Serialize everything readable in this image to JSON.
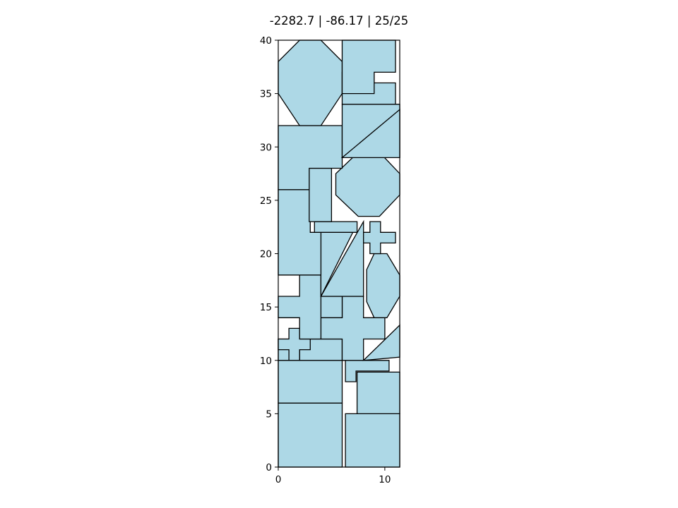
{
  "chart_data": {
    "type": "polygon-packing",
    "title": "-2282.7 | -86.17 | 25/25",
    "xlim": [
      0,
      11.4
    ],
    "ylim": [
      0,
      40
    ],
    "x_ticks": [
      0,
      10
    ],
    "x_tick_labels": [
      "0",
      "10"
    ],
    "y_ticks": [
      0,
      5,
      10,
      15,
      20,
      25,
      30,
      35,
      40
    ],
    "y_tick_labels": [
      "0",
      "5",
      "10",
      "15",
      "20",
      "25",
      "30",
      "35",
      "40"
    ],
    "grid": false,
    "fill_color": "#add8e6",
    "edge_color": "#000000",
    "shapes": [
      {
        "kind": "rectangle",
        "points": [
          [
            0,
            0
          ],
          [
            6,
            0
          ],
          [
            6,
            6
          ],
          [
            0,
            6
          ]
        ]
      },
      {
        "kind": "rectangle",
        "points": [
          [
            6.3,
            0
          ],
          [
            11.4,
            0
          ],
          [
            11.4,
            5
          ],
          [
            6.3,
            5
          ]
        ]
      },
      {
        "kind": "rectangle",
        "points": [
          [
            0,
            6
          ],
          [
            6,
            6
          ],
          [
            6,
            10
          ],
          [
            0,
            10
          ]
        ]
      },
      {
        "kind": "rectangle",
        "points": [
          [
            7.4,
            5
          ],
          [
            11.4,
            5
          ],
          [
            11.4,
            8.9
          ],
          [
            7.4,
            8.9
          ]
        ]
      },
      {
        "kind": "t-shape",
        "points": [
          [
            0,
            10
          ],
          [
            6,
            10
          ],
          [
            6,
            12
          ],
          [
            0,
            12
          ]
        ]
      },
      {
        "kind": "t-shape",
        "points": [
          [
            2,
            12
          ],
          [
            6,
            12
          ],
          [
            6,
            10
          ],
          [
            2,
            10
          ]
        ]
      },
      {
        "kind": "bracket",
        "points": [
          [
            6.3,
            8
          ],
          [
            7.3,
            8
          ],
          [
            7.3,
            9
          ],
          [
            10.4,
            9
          ],
          [
            10.4,
            10
          ],
          [
            6.3,
            10
          ]
        ]
      },
      {
        "kind": "cross",
        "points": [
          [
            1,
            10
          ],
          [
            2,
            10
          ],
          [
            2,
            11
          ],
          [
            3,
            11
          ],
          [
            3,
            12
          ],
          [
            2,
            12
          ],
          [
            2,
            13
          ],
          [
            1,
            13
          ],
          [
            1,
            12
          ],
          [
            0,
            12
          ],
          [
            0,
            11
          ],
          [
            1,
            11
          ]
        ]
      },
      {
        "kind": "triangle",
        "points": [
          [
            8,
            10
          ],
          [
            11.4,
            10.3
          ],
          [
            11.4,
            13.3
          ]
        ]
      },
      {
        "kind": "cross",
        "points": [
          [
            6,
            10
          ],
          [
            8,
            10
          ],
          [
            8,
            12
          ],
          [
            10,
            12
          ],
          [
            10,
            14
          ],
          [
            8,
            14
          ],
          [
            8,
            16
          ],
          [
            6,
            16
          ],
          [
            6,
            14
          ],
          [
            4,
            14
          ],
          [
            4,
            12
          ],
          [
            6,
            12
          ]
        ]
      },
      {
        "kind": "cross",
        "points": [
          [
            2,
            12
          ],
          [
            4,
            12
          ],
          [
            4,
            16
          ],
          [
            6,
            16
          ],
          [
            6,
            14
          ],
          [
            4,
            14
          ],
          [
            4,
            18
          ],
          [
            2,
            18
          ],
          [
            2,
            16
          ],
          [
            0,
            16
          ],
          [
            0,
            14
          ],
          [
            2,
            14
          ]
        ]
      },
      {
        "kind": "octagon",
        "points": [
          [
            9,
            14
          ],
          [
            10.2,
            14
          ],
          [
            11.4,
            16
          ],
          [
            11.4,
            18
          ],
          [
            10.2,
            20
          ],
          [
            9,
            20
          ],
          [
            8.3,
            18.5
          ],
          [
            8.3,
            15.5
          ]
        ]
      },
      {
        "kind": "triangle",
        "points": [
          [
            4,
            16
          ],
          [
            8,
            16
          ],
          [
            8,
            23
          ]
        ]
      },
      {
        "kind": "triangle",
        "points": [
          [
            4,
            16
          ],
          [
            7,
            22
          ],
          [
            4,
            22
          ]
        ]
      },
      {
        "kind": "l-shape",
        "points": [
          [
            0,
            18
          ],
          [
            4,
            18
          ],
          [
            4,
            22
          ],
          [
            3,
            22
          ],
          [
            3,
            26
          ],
          [
            0,
            26
          ]
        ]
      },
      {
        "kind": "cross",
        "points": [
          [
            8.6,
            20
          ],
          [
            9.6,
            20
          ],
          [
            9.6,
            21
          ],
          [
            11,
            21
          ],
          [
            11,
            22
          ],
          [
            9.6,
            22
          ],
          [
            9.6,
            23
          ],
          [
            8.6,
            23
          ],
          [
            8.6,
            22
          ],
          [
            8,
            22
          ],
          [
            8,
            21
          ],
          [
            8.6,
            21
          ]
        ]
      },
      {
        "kind": "rectangle",
        "points": [
          [
            3.4,
            22
          ],
          [
            7.4,
            22
          ],
          [
            7.4,
            23
          ],
          [
            3.4,
            23
          ]
        ]
      },
      {
        "kind": "rectangle",
        "points": [
          [
            2.9,
            23
          ],
          [
            5,
            23
          ],
          [
            5,
            28
          ],
          [
            2.9,
            28
          ]
        ]
      },
      {
        "kind": "octagon",
        "points": [
          [
            7.5,
            23.5
          ],
          [
            9.5,
            23.5
          ],
          [
            11.4,
            25.5
          ],
          [
            11.4,
            27.5
          ],
          [
            9.5,
            29.5
          ],
          [
            7.5,
            29.5
          ],
          [
            5.4,
            27.5
          ],
          [
            5.4,
            25.5
          ]
        ]
      },
      {
        "kind": "l-shape",
        "points": [
          [
            0,
            26
          ],
          [
            2.9,
            26
          ],
          [
            2.9,
            28
          ],
          [
            6,
            28
          ],
          [
            6,
            32
          ],
          [
            0,
            32
          ]
        ]
      },
      {
        "kind": "trapezoid",
        "points": [
          [
            6,
            29
          ],
          [
            11.4,
            29
          ],
          [
            11.4,
            34
          ],
          [
            6,
            34
          ]
        ]
      },
      {
        "kind": "triangle",
        "points": [
          [
            6,
            29
          ],
          [
            11.4,
            29
          ],
          [
            11.4,
            33.5
          ]
        ]
      },
      {
        "kind": "octagon",
        "points": [
          [
            2,
            32
          ],
          [
            4,
            32
          ],
          [
            6,
            35
          ],
          [
            6,
            38
          ],
          [
            4,
            40
          ],
          [
            2,
            40
          ],
          [
            0,
            38
          ],
          [
            0,
            35
          ]
        ]
      },
      {
        "kind": "l-shape",
        "points": [
          [
            6,
            34
          ],
          [
            11,
            34
          ],
          [
            11,
            36
          ],
          [
            9,
            36
          ],
          [
            9,
            37
          ],
          [
            6,
            37
          ]
        ]
      },
      {
        "kind": "l-shape",
        "points": [
          [
            6,
            35
          ],
          [
            9,
            35
          ],
          [
            9,
            37
          ],
          [
            11,
            37
          ],
          [
            11,
            40
          ],
          [
            6,
            40
          ]
        ]
      }
    ]
  }
}
